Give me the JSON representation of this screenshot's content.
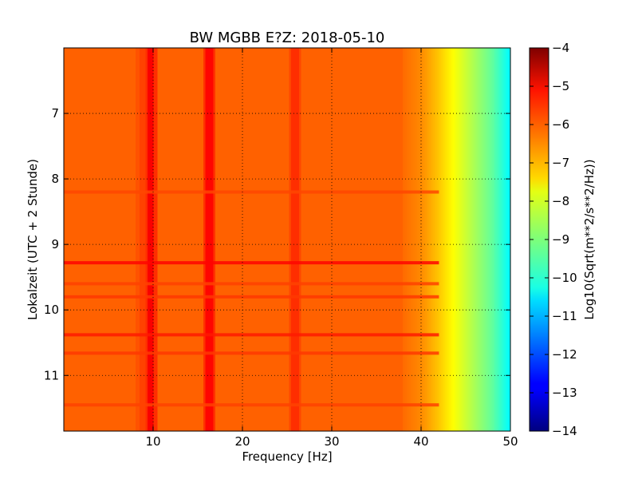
{
  "chart_data": {
    "type": "heatmap",
    "title": "BW MGBB E?Z: 2018-05-10",
    "xlabel": "Frequency [Hz]",
    "ylabel": "Lokalzeit (UTC + 2 Stunde)",
    "xlim": [
      0,
      50
    ],
    "ylim_hours": [
      6.0,
      11.85
    ],
    "y_inverted": true,
    "x_ticks": [
      10,
      20,
      30,
      40,
      50
    ],
    "x_tick_labels": [
      "10",
      "20",
      "30",
      "40",
      "50"
    ],
    "y_ticks": [
      7,
      8,
      9,
      10,
      11
    ],
    "y_tick_labels": [
      "7",
      "8",
      "9",
      "10",
      "11"
    ],
    "grid": true,
    "colormap": "jet",
    "colorbar": {
      "label": "Log10(Sqrt(m**2/s**2/Hz))",
      "min": -14,
      "max": -4,
      "ticks": [
        -4,
        -5,
        -6,
        -7,
        -8,
        -9,
        -10,
        -11,
        -12,
        -13,
        -14
      ],
      "tick_labels": [
        "−4",
        "−5",
        "−6",
        "−7",
        "−8",
        "−9",
        "−10",
        "−11",
        "−12",
        "−13",
        "−14"
      ]
    },
    "background_level": -6.2,
    "spectral_rolloff": [
      {
        "freq": 38,
        "level": -6.3
      },
      {
        "freq": 40,
        "level": -6.6
      },
      {
        "freq": 42,
        "level": -7.2
      },
      {
        "freq": 44,
        "level": -7.9
      },
      {
        "freq": 46,
        "level": -8.6
      },
      {
        "freq": 48,
        "level": -9.3
      },
      {
        "freq": 50,
        "level": -10.3
      }
    ],
    "spectral_peaks": [
      {
        "freq": 9.8,
        "level": -5.2
      },
      {
        "freq": 16.3,
        "level": -5.3
      },
      {
        "freq": 8.8,
        "level": -5.9
      },
      {
        "freq": 25.9,
        "level": -5.7
      }
    ],
    "broadband_events": [
      {
        "time": 9.28,
        "level": -5.3
      },
      {
        "time": 10.38,
        "level": -5.5
      },
      {
        "time": 9.8,
        "level": -5.8
      },
      {
        "time": 9.6,
        "level": -5.9
      },
      {
        "time": 10.66,
        "level": -5.8
      },
      {
        "time": 8.2,
        "level": -5.95
      },
      {
        "time": 11.45,
        "level": -5.9
      }
    ]
  }
}
